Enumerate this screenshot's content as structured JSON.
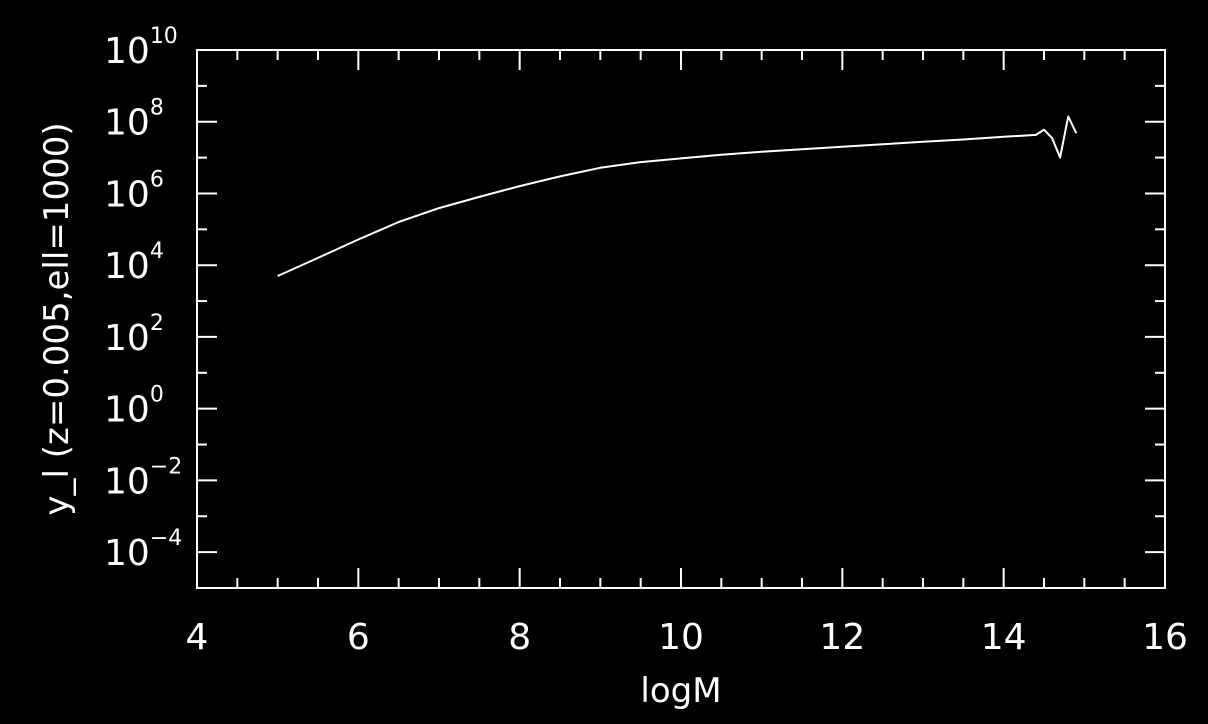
{
  "chart_data": {
    "type": "line",
    "xlabel": "logM",
    "ylabel": "y_l (z=0.005,ell=1000)",
    "xlim": [
      4,
      16
    ],
    "ylim_exponent": [
      -5,
      10
    ],
    "yscale": "log",
    "grid": false,
    "x_ticks": [
      "4",
      "6",
      "8",
      "10",
      "12",
      "14",
      "16"
    ],
    "y_ticks": [
      {
        "base": "10",
        "exp": "10",
        "value_exp": 10
      },
      {
        "base": "10",
        "exp": "8",
        "value_exp": 8
      },
      {
        "base": "10",
        "exp": "6",
        "value_exp": 6
      },
      {
        "base": "10",
        "exp": "4",
        "value_exp": 4
      },
      {
        "base": "10",
        "exp": "2",
        "value_exp": 2
      },
      {
        "base": "10",
        "exp": "0",
        "value_exp": 0
      },
      {
        "base": "10",
        "exp": "−2",
        "value_exp": -2
      },
      {
        "base": "10",
        "exp": "−4",
        "value_exp": -4
      }
    ],
    "series": [
      {
        "color": "#ffffff",
        "x": [
          5.0,
          5.5,
          6.0,
          6.5,
          7.0,
          7.5,
          8.0,
          8.5,
          9.0,
          9.5,
          10.0,
          10.5,
          11.0,
          11.5,
          12.0,
          12.5,
          13.0,
          13.5,
          14.0,
          14.4,
          14.5,
          14.6,
          14.7,
          14.8,
          14.9
        ],
        "y": [
          5000.0,
          16000.0,
          52000.0,
          160000.0,
          390000.0,
          800000.0,
          1600000.0,
          3000000.0,
          5200000.0,
          7500000.0,
          9500000.0,
          12000000.0,
          14500000.0,
          17000000.0,
          20000000.0,
          23500000.0,
          27500000.0,
          32000000.0,
          38000000.0,
          43000000.0,
          60000000.0,
          35000000.0,
          10000000.0,
          140000000.0,
          48000000.0
        ]
      }
    ]
  }
}
